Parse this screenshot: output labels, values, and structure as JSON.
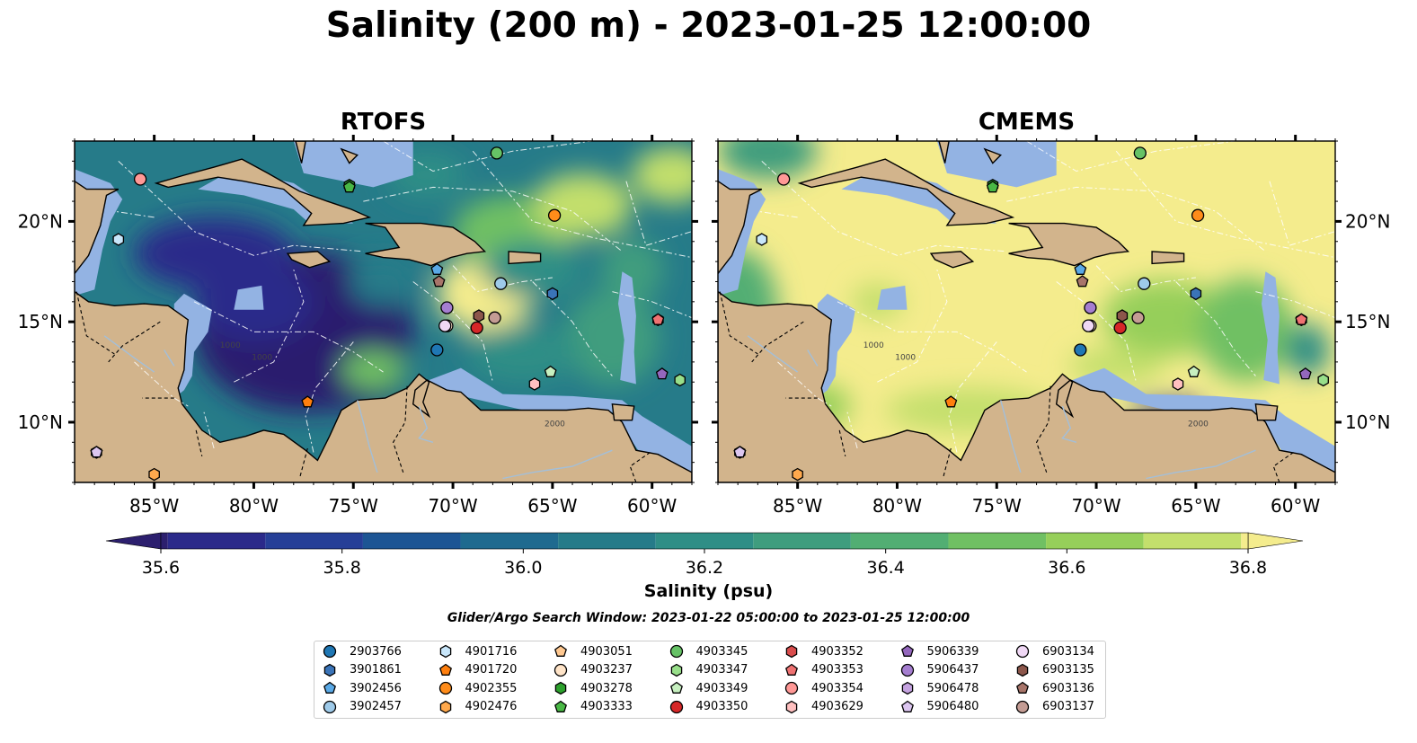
{
  "title": "Salinity (200 m) - 2023-01-25 12:00:00",
  "panels": {
    "left": {
      "title": "RTOFS"
    },
    "right": {
      "title": "CMEMS"
    }
  },
  "map_extent": {
    "lon": [
      -89,
      -58
    ],
    "lat": [
      7,
      24
    ]
  },
  "lon_ticks": [
    "85°W",
    "80°W",
    "75°W",
    "70°W",
    "65°W",
    "60°W"
  ],
  "lat_ticks": [
    "20°N",
    "15°N",
    "10°N"
  ],
  "contour_labels": [
    "1000",
    "2000",
    "1000"
  ],
  "colorbar": {
    "label": "Salinity (psu)",
    "range": [
      35.5,
      36.9
    ],
    "ticks": [
      "35.6",
      "35.8",
      "36.0",
      "36.2",
      "36.4",
      "36.6",
      "36.8"
    ],
    "colors": [
      "#2c1f6e",
      "#2b2a8a",
      "#263f97",
      "#1d5594",
      "#1f6a8f",
      "#267b89",
      "#2f8e86",
      "#3f9d7e",
      "#52ae73",
      "#70c063",
      "#96cf5a",
      "#c3df6c",
      "#f4ec8d"
    ],
    "extend": "both"
  },
  "search_window": "Glider/Argo Search Window: 2023-01-22 05:00:00 to 2023-01-25 12:00:00",
  "colors": {
    "land": "#d2b48c",
    "shallow_water": "#93b3e3",
    "coast": "#000000",
    "boundary": "#ffffff"
  },
  "floats": [
    {
      "id": "2903766",
      "marker": "circle",
      "color": "#1f77b4",
      "lon": -70.8,
      "lat": 13.6
    },
    {
      "id": "3901861",
      "marker": "hexagon",
      "color": "#3a74b8",
      "lon": -65,
      "lat": 16.4
    },
    {
      "id": "3902456",
      "marker": "pentagon",
      "color": "#5aa9e6",
      "lon": -70.8,
      "lat": 17.6
    },
    {
      "id": "3902457",
      "marker": "circle",
      "color": "#9ecae9",
      "lon": -67.6,
      "lat": 16.9
    },
    {
      "id": "4901716",
      "marker": "hexagon",
      "color": "#c8e6fa",
      "lon": -86.8,
      "lat": 19.1
    },
    {
      "id": "4901720",
      "marker": "pentagon",
      "color": "#ff7f0e",
      "lon": -77.3,
      "lat": 11
    },
    {
      "id": "4902355",
      "marker": "circle",
      "color": "#ff8c1a",
      "lon": -64.9,
      "lat": 20.3
    },
    {
      "id": "4902476",
      "marker": "hexagon",
      "color": "#ffa94d",
      "lon": -85,
      "lat": 7.4
    },
    {
      "id": "4903051",
      "marker": "pentagon",
      "color": "#ffc890",
      "lon": -87.9,
      "lat": 8.5
    },
    {
      "id": "4903237",
      "marker": "circle",
      "color": "#ffe4c8",
      "lon": -70.3,
      "lat": 14.8
    },
    {
      "id": "4903278",
      "marker": "hexagon",
      "color": "#2ca02c",
      "lon": -75.2,
      "lat": 21.8
    },
    {
      "id": "4903333",
      "marker": "pentagon",
      "color": "#49b845",
      "lon": -75.2,
      "lat": 21.7
    },
    {
      "id": "4903345",
      "marker": "circle",
      "color": "#66c266",
      "lon": -67.8,
      "lat": 23.4
    },
    {
      "id": "4903347",
      "marker": "hexagon",
      "color": "#98df8a",
      "lon": -58.6,
      "lat": 12.1
    },
    {
      "id": "4903349",
      "marker": "pentagon",
      "color": "#c7f0c0",
      "lon": -65.1,
      "lat": 12.5
    },
    {
      "id": "4903350",
      "marker": "circle",
      "color": "#d62728",
      "lon": -68.8,
      "lat": 14.7
    },
    {
      "id": "4903352",
      "marker": "hexagon",
      "color": "#d94d4d",
      "lon": -59.7,
      "lat": 15.1
    },
    {
      "id": "4903353",
      "marker": "pentagon",
      "color": "#ef7272",
      "lon": -59.7,
      "lat": 15.1
    },
    {
      "id": "4903354",
      "marker": "circle",
      "color": "#ff9896",
      "lon": -85.7,
      "lat": 22.1
    },
    {
      "id": "4903629",
      "marker": "hexagon",
      "color": "#ffc0c0",
      "lon": -65.9,
      "lat": 11.9
    },
    {
      "id": "5906339",
      "marker": "pentagon",
      "color": "#9467bd",
      "lon": -59.5,
      "lat": 12.4
    },
    {
      "id": "5906437",
      "marker": "circle",
      "color": "#a57ed0",
      "lon": -70.3,
      "lat": 15.7
    },
    {
      "id": "5906478",
      "marker": "hexagon",
      "color": "#c5a3e0",
      "lon": -87.9,
      "lat": 8.5
    },
    {
      "id": "5906480",
      "marker": "pentagon",
      "color": "#dcc6f0",
      "lon": -87.9,
      "lat": 8.5
    },
    {
      "id": "6903134",
      "marker": "circle",
      "color": "#f0d8f5",
      "lon": -70.4,
      "lat": 14.8
    },
    {
      "id": "6903135",
      "marker": "hexagon",
      "color": "#8c564b",
      "lon": -68.7,
      "lat": 15.3
    },
    {
      "id": "6903136",
      "marker": "pentagon",
      "color": "#a8756a",
      "lon": -70.7,
      "lat": 17
    },
    {
      "id": "6903137",
      "marker": "circle",
      "color": "#c49c94",
      "lon": -67.9,
      "lat": 15.2
    }
  ]
}
